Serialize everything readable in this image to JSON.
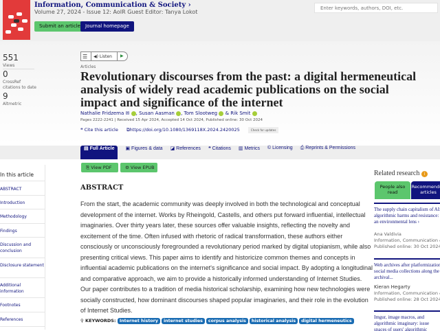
{
  "journal": {
    "title": "Information, Communication & Society ›",
    "issue": "Volume 27, 2024 - Issue 12: AoIR Guest Editor: Tanya Lokot",
    "submit": "Submit an article",
    "homepage": "Journal homepage"
  },
  "search": {
    "placeholder": "Enter keywords, authors, DOI, etc."
  },
  "metrics": [
    {
      "value": "551",
      "label": "Views"
    },
    {
      "value": "0",
      "label": "CrossRef citations to date"
    },
    {
      "value": "9",
      "label": "Altmetric"
    }
  ],
  "toolbar": {
    "listen": "Listen"
  },
  "article": {
    "type": "Articles",
    "title": "Revolutionary discourses from the past: a digital hermeneutical analysis of widely read academic publications on the social impact and significance of the internet",
    "authors": [
      "Nathalie Fridzema",
      "Susan Aasman",
      "Tom Slootweg",
      "Rik Smit"
    ],
    "pages": "Pages 2222-2241 | Received 15 Apr 2024, Accepted 14 Oct 2024, Published online: 30 Oct 2024",
    "cite": "Cite this article",
    "doi": "https://doi.org/10.1080/1369118X.2024.2420025",
    "crossmark": "Check for updates"
  },
  "tabs": [
    "Full Article",
    "Figures & data",
    "References",
    "Citations",
    "Metrics",
    "Licensing",
    "Reprints & Permissions"
  ],
  "downloads": {
    "pdf": "View PDF",
    "epub": "View EPUB"
  },
  "toc": {
    "heading": "In this article",
    "items": [
      "ABSTRACT",
      "Introduction",
      "Methodology",
      "Findings",
      "Discussion and conclusion",
      "Disclosure statement",
      "Additional information",
      "Footnotes",
      "References"
    ]
  },
  "abstract": {
    "heading": "ABSTRACT",
    "body": "From the start, the academic community was deeply involved in both the technological and conceptual development of the internet. Works by Rheingold, Castells, and others put forward influential, intellectual imaginaries. Over thirty years later, these sources offer valuable insights, reflecting the novelty and excitement of the time. Often infused with rhetoric of radical transformation, these authors either consciously or unconsciously foregrounded a revolutionary period marked by digital utopianism, while also presenting critical views. This paper aims to identify and historicize common themes and concepts in influential academic publications on the internet's significance and social impact. By adopting a longitudinal and comparative approach, we aim to provide a historically informed understanding of Internet Studies. Our paper contributes to a tradition of media historical scholarship, examining how new technologies were socially constructed, how dominant discourses shaped popular imaginaries, and their role in the evolution of Internet Studies."
  },
  "keywords": {
    "label": "KEYWORDS:",
    "items": [
      "Internet history",
      "internet studies",
      "corpus analysis",
      "historical analysis",
      "digital hermeneutics"
    ]
  },
  "related": {
    "heading": "Related research",
    "tabs": [
      "People also read",
      "Recommended articles"
    ],
    "items": [
      {
        "title": "The supply chain capitalism of AI: algorithmic harms and resistance: an environmental lens ›",
        "author": "Ana Valdivia",
        "journal": "Information, Communication & Society",
        "date": "Published online: 30 Oct 2024"
      },
      {
        "title": "Web archives after platformization: social media collections along the archival...",
        "author": "Kieran Hegarty",
        "journal": "Information, Communication & Society",
        "date": "Published online: 28 Oct 2024"
      },
      {
        "title": "Imgur, image macros, and algorithmic imaginary: issue spaces of users' algorithmic recommendations",
        "author": "",
        "journal": "",
        "date": ""
      }
    ]
  },
  "colors": {
    "navy": "#10147e",
    "green": "#5cc66d",
    "keyword": "#1a6cb3"
  }
}
